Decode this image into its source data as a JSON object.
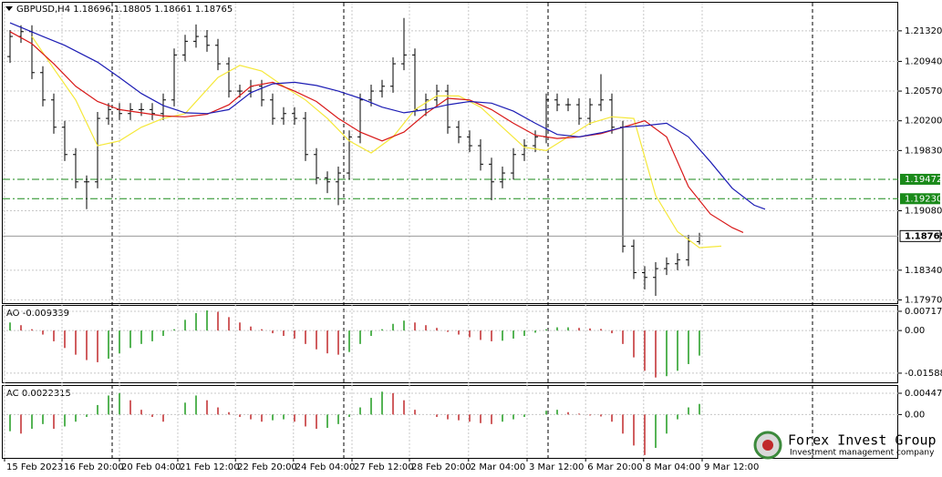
{
  "chart_data": [
    {
      "type": "ohlc",
      "title": "GBPUSD,H4  1.18696 1.18805 1.18661 1.18765",
      "x": [
        0,
        1,
        2,
        3,
        4,
        5,
        6,
        7,
        8,
        9,
        10,
        11,
        12,
        13,
        14,
        15,
        16,
        17,
        18,
        19,
        20,
        21,
        22,
        23,
        24,
        25,
        26,
        27,
        28,
        29,
        30,
        31,
        32,
        33,
        34,
        35,
        36,
        37,
        38,
        39,
        40,
        41,
        42,
        43,
        44,
        45,
        46,
        47,
        48,
        49,
        50,
        51,
        52,
        53,
        54,
        55,
        56,
        57,
        58,
        59,
        60,
        61,
        62,
        63
      ],
      "open": [
        1.21,
        1.2125,
        1.2131,
        1.208,
        1.2046,
        1.2012,
        1.1978,
        1.1944,
        1.1944,
        1.2023,
        1.2034,
        1.2029,
        1.2034,
        1.2034,
        1.2029,
        1.2046,
        1.2102,
        1.2119,
        1.2125,
        1.2114,
        1.2091,
        1.2057,
        1.2057,
        1.2063,
        1.2046,
        1.2023,
        1.2029,
        1.2023,
        1.1978,
        1.1949,
        1.1944,
        1.1955,
        1.2,
        1.2046,
        1.2057,
        1.2063,
        1.2091,
        1.2102,
        1.2034,
        1.2046,
        1.2057,
        1.2012,
        1.2,
        1.1989,
        1.1966,
        1.1944,
        1.1955,
        1.1978,
        1.1989,
        1.2,
        1.2046,
        1.204,
        1.204,
        1.2023,
        1.204,
        1.2046,
        1.2012,
        1.1864,
        1.1831,
        1.1825,
        1.1836,
        1.1842,
        1.1847,
        1.18696
      ],
      "high": [
        1.2133,
        1.2139,
        1.2139,
        1.2088,
        1.2054,
        1.202,
        1.1986,
        1.1952,
        1.2031,
        1.2042,
        1.2042,
        1.2042,
        1.2042,
        1.2042,
        1.2054,
        1.211,
        1.2127,
        1.214,
        1.2133,
        1.2122,
        1.2099,
        1.2065,
        1.2071,
        1.2071,
        1.2054,
        1.2037,
        1.2037,
        1.2031,
        1.1986,
        1.1957,
        1.1963,
        1.2008,
        1.2054,
        1.2065,
        1.2071,
        1.2099,
        1.2148,
        1.211,
        1.2054,
        1.2065,
        1.2065,
        1.202,
        1.2008,
        1.1997,
        1.1974,
        1.1963,
        1.1986,
        1.1997,
        1.2008,
        1.2054,
        1.2054,
        1.2048,
        1.2048,
        1.2048,
        1.2078,
        1.2054,
        1.202,
        1.1872,
        1.1839,
        1.1844,
        1.185,
        1.1855,
        1.1878,
        1.18805
      ],
      "low": [
        1.2092,
        1.2117,
        1.2072,
        1.2038,
        1.2004,
        1.197,
        1.1936,
        1.191,
        1.1936,
        1.2015,
        1.2021,
        1.2021,
        1.2026,
        1.2021,
        1.2021,
        1.2038,
        1.2094,
        1.2111,
        1.2106,
        1.2083,
        1.2049,
        1.2049,
        1.2049,
        1.2038,
        1.2015,
        1.2015,
        1.2015,
        1.197,
        1.1941,
        1.193,
        1.1915,
        1.1947,
        1.1992,
        1.2038,
        1.2049,
        1.2055,
        1.2083,
        1.2026,
        1.2026,
        1.2038,
        1.2004,
        1.1992,
        1.1981,
        1.1958,
        1.1921,
        1.1936,
        1.1947,
        1.197,
        1.1981,
        1.1992,
        1.2032,
        1.2032,
        1.2015,
        1.2015,
        1.2032,
        1.2004,
        1.1856,
        1.1823,
        1.181,
        1.1802,
        1.1828,
        1.1834,
        1.1839,
        1.18661
      ],
      "close": [
        1.2125,
        1.2131,
        1.208,
        1.2046,
        1.2012,
        1.1978,
        1.1944,
        1.1944,
        1.2023,
        1.2034,
        1.2029,
        1.2034,
        1.2034,
        1.2029,
        1.2046,
        1.2102,
        1.2119,
        1.2125,
        1.2114,
        1.2091,
        1.2057,
        1.2057,
        1.2063,
        1.2046,
        1.2023,
        1.2029,
        1.2023,
        1.1978,
        1.1949,
        1.1944,
        1.1955,
        1.2,
        1.2046,
        1.2057,
        1.2063,
        1.2091,
        1.2102,
        1.2034,
        1.2046,
        1.2057,
        1.2012,
        1.2,
        1.1989,
        1.1966,
        1.1944,
        1.1955,
        1.1978,
        1.1989,
        1.2,
        1.2046,
        1.204,
        1.204,
        1.2023,
        1.204,
        1.2046,
        1.2012,
        1.1864,
        1.1831,
        1.1825,
        1.1836,
        1.1842,
        1.1847,
        1.187,
        1.18765
      ],
      "bar_color": "#000000",
      "series": [
        {
          "color": "#f5e83a",
          "x": [
            2,
            4,
            6,
            8,
            10,
            12,
            14,
            16,
            19,
            21,
            23,
            25,
            27,
            29,
            31,
            33,
            35,
            37,
            39,
            41,
            43,
            45,
            47,
            49,
            51,
            53,
            55,
            57,
            59,
            61,
            63,
            65
          ],
          "values": [
            1.2125,
            1.2085,
            1.2046,
            1.1989,
            1.1995,
            1.2012,
            1.2023,
            1.2029,
            1.2074,
            1.2089,
            1.2082,
            1.2063,
            1.2046,
            1.2023,
            1.1995,
            1.198,
            1.2,
            1.2034,
            1.2051,
            1.2051,
            1.2037,
            1.2012,
            1.1987,
            1.1983,
            1.2,
            1.2017,
            1.2025,
            1.2023,
            1.1927,
            1.1882,
            1.1862,
            1.1864
          ]
        },
        {
          "color": "#d81818",
          "x": [
            0,
            2,
            4,
            6,
            8,
            10,
            12,
            14,
            16,
            18,
            20,
            22,
            24,
            26,
            28,
            30,
            32,
            34,
            36,
            38,
            40,
            42,
            44,
            46,
            48,
            50,
            52,
            54,
            56,
            58,
            60,
            62,
            64,
            66,
            67
          ],
          "values": [
            1.2131,
            1.2116,
            1.2091,
            1.2063,
            1.2044,
            1.2034,
            1.203,
            1.2026,
            1.2025,
            1.2028,
            1.204,
            1.2063,
            1.2068,
            1.2057,
            1.2044,
            1.2023,
            1.2006,
            1.1995,
            1.2006,
            1.2029,
            1.2048,
            1.2046,
            1.2034,
            1.2017,
            1.2002,
            1.1998,
            1.2,
            1.2004,
            1.2012,
            1.202,
            1.2,
            1.1938,
            1.1904,
            1.1887,
            1.1881
          ]
        },
        {
          "color": "#1c1cb4",
          "x": [
            0,
            3,
            5,
            8,
            10,
            12,
            14,
            16,
            18,
            20,
            22,
            24,
            26,
            28,
            30,
            32,
            34,
            36,
            38,
            40,
            42,
            44,
            46,
            48,
            50,
            52,
            54,
            56,
            58,
            60,
            62,
            64,
            66,
            68,
            69
          ],
          "values": [
            1.2142,
            1.2125,
            1.2114,
            1.2093,
            1.2074,
            1.2054,
            1.2039,
            1.203,
            1.2029,
            1.2034,
            1.2055,
            1.2066,
            1.2068,
            1.2064,
            1.2057,
            1.2048,
            1.2037,
            1.203,
            1.2034,
            1.204,
            1.2044,
            1.2042,
            1.2032,
            1.2017,
            1.2003,
            1.2,
            1.2005,
            1.2012,
            1.2014,
            1.2017,
            1.2,
            1.1969,
            1.1936,
            1.1915,
            1.191
          ]
        }
      ],
      "levels": [
        {
          "value": 1.19472,
          "label": "1.19472"
        },
        {
          "value": 1.1923,
          "label": "1.19230"
        }
      ],
      "level_color": "#1a8a1a",
      "last_price": 1.18765,
      "ylim": [
        1.1793,
        1.2167
      ],
      "yticks": [
        {
          "value": 1.2132,
          "label": "1.21320"
        },
        {
          "value": 1.2094,
          "label": "1.20940"
        },
        {
          "value": 1.2057,
          "label": "1.20570"
        },
        {
          "value": 1.202,
          "label": "1.20200"
        },
        {
          "value": 1.1983,
          "label": "1.19830"
        },
        {
          "value": 1.1908,
          "label": "1.19080"
        },
        {
          "value": 1.1834,
          "label": "1.18340"
        },
        {
          "value": 1.1797,
          "label": "1.17970"
        }
      ],
      "xticks": [
        {
          "value": -0.5,
          "label": "15 Feb 2023"
        },
        {
          "value": 4.75,
          "label": "16 Feb 20:00"
        },
        {
          "value": 10,
          "label": "20 Feb 04:00"
        },
        {
          "value": 15.33,
          "label": "21 Feb 12:00"
        },
        {
          "value": 20.6,
          "label": "22 Feb 20:00"
        },
        {
          "value": 25.9,
          "label": "24 Feb 04:00"
        },
        {
          "value": 31.25,
          "label": "27 Feb 12:00"
        },
        {
          "value": 36.5,
          "label": "28 Feb 20:00"
        },
        {
          "value": 41.9,
          "label": "2 Mar 04:00"
        },
        {
          "value": 47.25,
          "label": "3 Mar 12:00"
        },
        {
          "value": 52.6,
          "label": "6 Mar 20:00"
        },
        {
          "value": 57.9,
          "label": "8 Mar 04:00"
        },
        {
          "value": 63.25,
          "label": "9 Mar 12:00"
        }
      ],
      "grid": true
    },
    {
      "type": "histogram",
      "title": "AO -0.009339",
      "up_color": "#1e9a1e",
      "down_color": "#c0282a",
      "values": [
        0.003,
        0.002,
        0.0005,
        -0.0015,
        -0.004,
        -0.0065,
        -0.009,
        -0.011,
        -0.0118,
        -0.0105,
        -0.0085,
        -0.0065,
        -0.005,
        -0.004,
        -0.002,
        0.0005,
        0.004,
        0.0065,
        0.0075,
        0.007,
        0.005,
        0.003,
        0.0015,
        0.0005,
        -0.001,
        -0.002,
        -0.003,
        -0.005,
        -0.007,
        -0.0085,
        -0.009,
        -0.008,
        -0.005,
        -0.002,
        0.0005,
        0.0025,
        0.0037,
        0.003,
        0.002,
        0.001,
        -0.0005,
        -0.0015,
        -0.0025,
        -0.0035,
        -0.004,
        -0.0038,
        -0.003,
        -0.002,
        -0.0008,
        0.0005,
        0.0012,
        0.0012,
        0.001,
        0.0008,
        0.0006,
        -0.001,
        -0.005,
        -0.01,
        -0.015,
        -0.0175,
        -0.017,
        -0.015,
        -0.0125,
        -0.009339
      ],
      "ylim": [
        -0.0193,
        0.0092
      ],
      "yticks": [
        0.007176,
        {
          "value": 0,
          "label": "0.00"
        },
        -0.015884
      ]
    },
    {
      "type": "histogram",
      "title": "AC 0.0022315",
      "up_color": "#1e9a1e",
      "down_color": "#c0282a",
      "values": [
        -0.0035,
        -0.004,
        -0.003,
        -0.002,
        -0.003,
        -0.0025,
        -0.0015,
        -0.0005,
        0.002,
        0.004,
        0.0045,
        0.003,
        0.001,
        -0.0005,
        -0.0015,
        0.0,
        0.0025,
        0.004,
        0.003,
        0.0015,
        0.0005,
        -0.0005,
        -0.001,
        -0.0015,
        -0.0012,
        -0.001,
        -0.0015,
        -0.0025,
        -0.003,
        -0.0028,
        -0.002,
        -0.0005,
        0.0015,
        0.0035,
        0.0048,
        0.0045,
        0.003,
        0.001,
        0.0,
        -0.0005,
        -0.001,
        -0.0012,
        -0.0015,
        -0.0018,
        -0.002,
        -0.0015,
        -0.001,
        -0.0005,
        0.0,
        0.0008,
        0.001,
        0.0005,
        0.0002,
        -0.0002,
        -0.0004,
        -0.0015,
        -0.004,
        -0.0065,
        -0.0085,
        -0.007,
        -0.004,
        -0.001,
        0.0015,
        0.0022315
      ],
      "ylim": [
        -0.0091,
        0.006
      ],
      "yticks": [
        0.004471,
        {
          "value": 0,
          "label": "0.00"
        }
      ]
    }
  ],
  "watermark": {
    "name": "Forex Invest Group OU",
    "tagline": "Investment management company"
  }
}
